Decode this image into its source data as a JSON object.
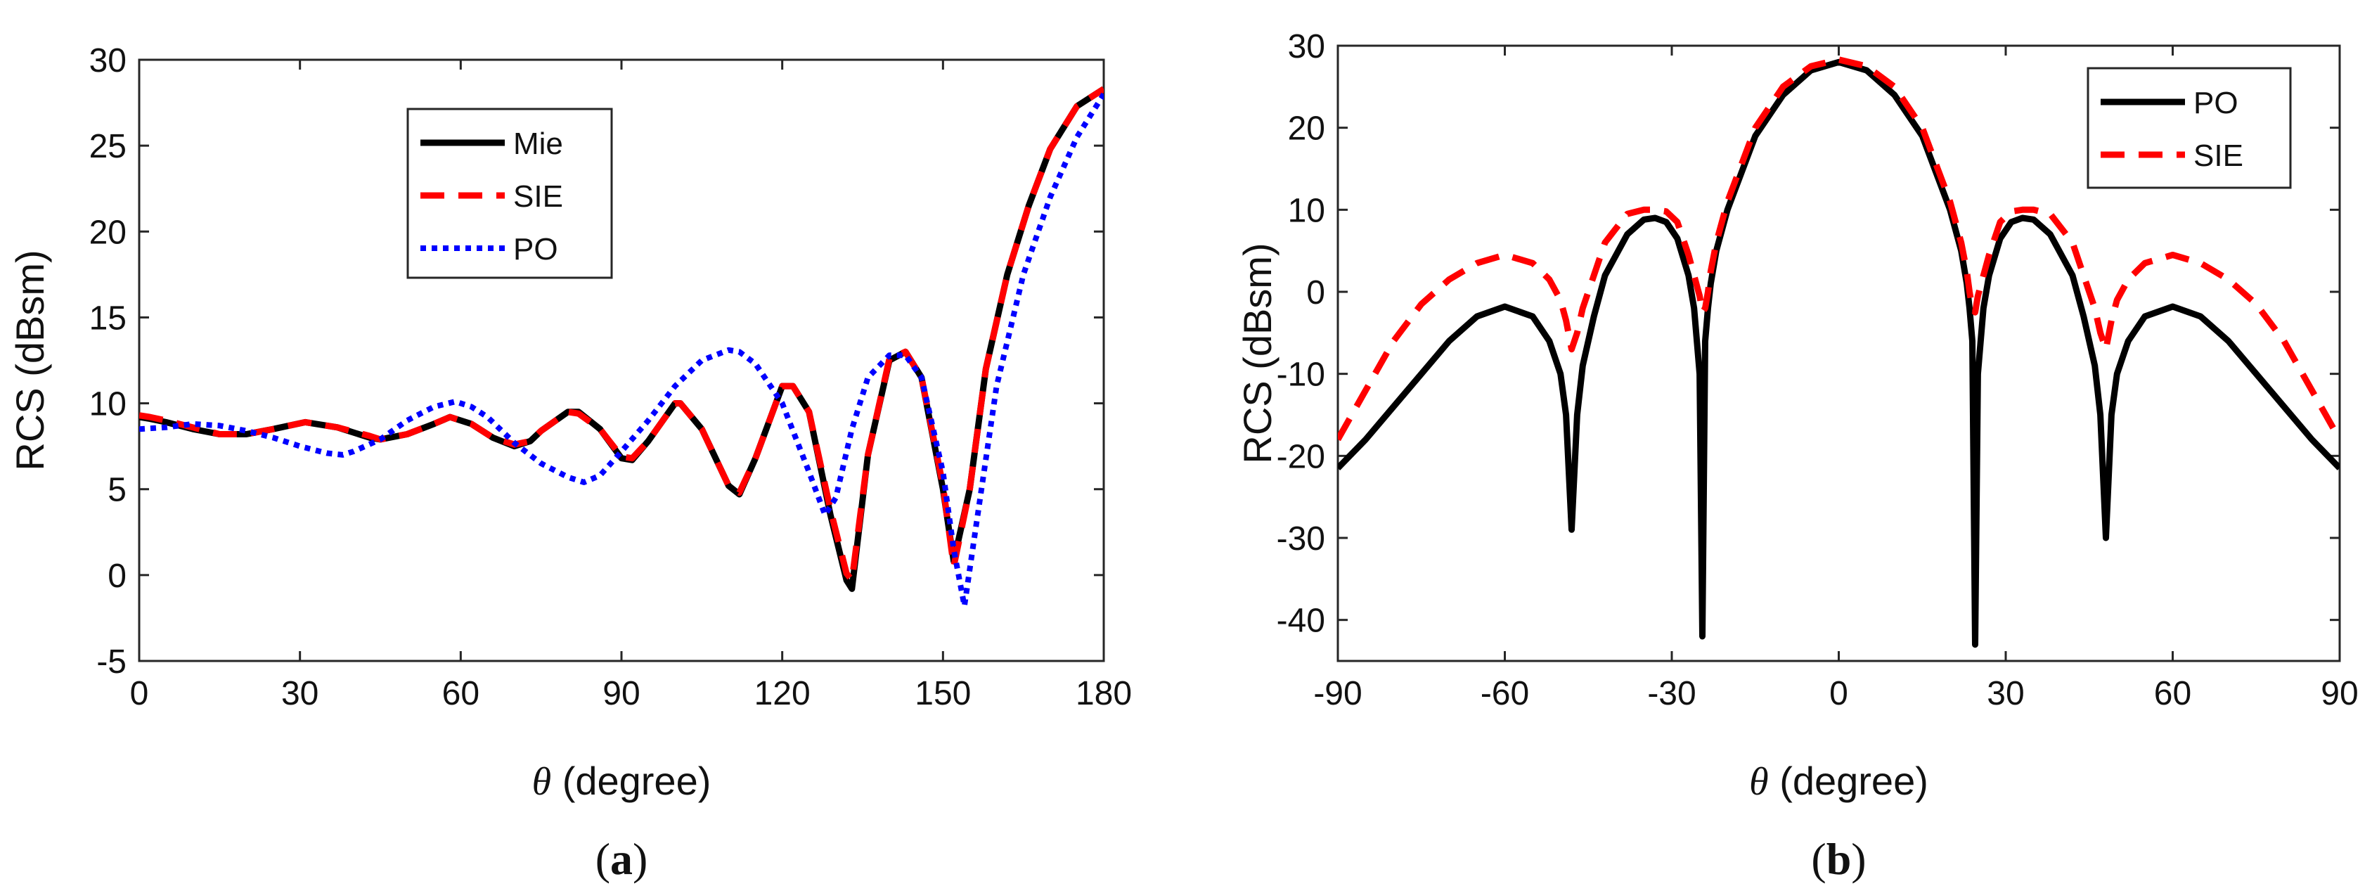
{
  "chart_data": [
    {
      "type": "line",
      "panel": "a",
      "caption": {
        "open": "(",
        "letter": "a",
        "close": ")"
      },
      "xlabel": {
        "symbol": "θ",
        "text": " (degree)"
      },
      "ylabel": "RCS (dBsm)",
      "xlim": [
        0,
        180
      ],
      "ylim": [
        -5,
        30
      ],
      "xticks": [
        0,
        30,
        60,
        90,
        120,
        150,
        180
      ],
      "yticks": [
        -5,
        0,
        5,
        10,
        15,
        20,
        25,
        30
      ],
      "xtick_labels": [
        "0",
        "30",
        "60",
        "90",
        "120",
        "150",
        "180"
      ],
      "ytick_labels": [
        "-5",
        "0",
        "5",
        "10",
        "15",
        "20",
        "25",
        "30"
      ],
      "grid": false,
      "legend_position": "upper-center",
      "series": [
        {
          "name": "Mie",
          "color": "#000000",
          "style": "solid",
          "x": [
            0,
            2,
            5,
            10,
            15,
            20,
            25,
            31,
            37,
            43,
            45,
            50,
            55,
            58,
            62,
            66,
            70,
            73,
            75,
            80,
            82,
            86,
            90,
            92,
            95,
            100,
            101,
            105,
            110,
            112,
            115,
            120,
            122,
            125,
            129,
            132,
            133,
            136,
            140,
            143,
            146,
            150,
            152,
            155,
            158,
            162,
            166,
            170,
            175,
            180
          ],
          "y": [
            9.2,
            9.1,
            8.9,
            8.5,
            8.2,
            8.2,
            8.5,
            8.9,
            8.6,
            8.0,
            7.9,
            8.2,
            8.8,
            9.2,
            8.8,
            8.0,
            7.5,
            7.8,
            8.4,
            9.5,
            9.5,
            8.5,
            6.8,
            6.7,
            7.8,
            10.0,
            10.0,
            8.5,
            5.2,
            4.7,
            6.8,
            11.0,
            11.0,
            9.5,
            3.5,
            -0.3,
            -0.8,
            7.0,
            12.5,
            13.0,
            11.5,
            5.0,
            0.8,
            5.0,
            12.0,
            17.5,
            21.5,
            24.8,
            27.3,
            28.3
          ]
        },
        {
          "name": "SIE",
          "color": "#ff0000",
          "style": "dashed",
          "x": [
            0,
            2,
            5,
            10,
            15,
            20,
            25,
            31,
            37,
            43,
            45,
            50,
            55,
            58,
            62,
            66,
            70,
            73,
            75,
            80,
            82,
            86,
            90,
            92,
            95,
            100,
            101,
            105,
            110,
            112,
            115,
            120,
            122,
            125,
            129,
            132,
            133,
            136,
            140,
            143,
            146,
            150,
            152,
            155,
            158,
            162,
            166,
            170,
            175,
            180
          ],
          "y": [
            9.3,
            9.2,
            9.0,
            8.6,
            8.2,
            8.2,
            8.5,
            8.9,
            8.6,
            8.1,
            7.9,
            8.2,
            8.8,
            9.2,
            8.8,
            8.0,
            7.6,
            7.8,
            8.4,
            9.5,
            9.4,
            8.5,
            6.9,
            6.8,
            7.8,
            10.0,
            10.0,
            8.5,
            5.2,
            4.8,
            6.8,
            11.0,
            11.0,
            9.5,
            3.8,
            0.1,
            -0.3,
            7.0,
            12.6,
            13.0,
            11.5,
            5.2,
            0.5,
            5.0,
            12.0,
            17.5,
            21.5,
            24.8,
            27.3,
            28.3
          ]
        },
        {
          "name": "PO",
          "color": "#0000ff",
          "style": "dotted",
          "x": [
            0,
            5,
            10,
            15,
            20,
            25,
            30,
            35,
            38,
            40,
            45,
            50,
            55,
            59,
            62,
            65,
            70,
            75,
            80,
            83,
            86,
            90,
            95,
            100,
            105,
            110,
            112,
            115,
            120,
            125,
            128,
            130,
            133,
            136,
            140,
            143,
            146,
            150,
            152,
            154,
            156,
            160,
            165,
            170,
            175,
            180
          ],
          "y": [
            8.5,
            8.6,
            8.8,
            8.7,
            8.4,
            8.0,
            7.5,
            7.1,
            7.0,
            7.2,
            7.9,
            9.0,
            9.8,
            10.1,
            9.8,
            9.2,
            7.7,
            6.5,
            5.7,
            5.4,
            5.8,
            7.2,
            9.0,
            11.0,
            12.5,
            13.1,
            13.0,
            12.3,
            10.0,
            6.0,
            3.5,
            4.5,
            8.5,
            11.5,
            12.8,
            12.8,
            11.5,
            6.0,
            1.5,
            -1.8,
            2.5,
            11.0,
            17.5,
            22.0,
            25.5,
            28.0
          ]
        }
      ]
    },
    {
      "type": "line",
      "panel": "b",
      "caption": {
        "open": "(",
        "letter": "b",
        "close": ")"
      },
      "xlabel": {
        "symbol": "θ",
        "text": " (degree)"
      },
      "ylabel": "RCS (dBsm)",
      "xlim": [
        -90,
        90
      ],
      "ylim": [
        -45,
        30
      ],
      "xticks": [
        -90,
        -60,
        -30,
        0,
        30,
        60,
        90
      ],
      "yticks": [
        -40,
        -30,
        -20,
        -10,
        0,
        10,
        20,
        30
      ],
      "xtick_labels": [
        "-90",
        "-60",
        "-30",
        "0",
        "30",
        "60",
        "90"
      ],
      "ytick_labels": [
        "-40",
        "-30",
        "-20",
        "-10",
        "0",
        "10",
        "20",
        "30"
      ],
      "grid": false,
      "legend_position": "top-right",
      "series": [
        {
          "name": "PO",
          "color": "#000000",
          "style": "solid",
          "x": [
            -90,
            -85,
            -80,
            -75,
            -70,
            -65,
            -60,
            -55,
            -52,
            -50,
            -49,
            -48,
            -47,
            -46,
            -44,
            -42,
            -38,
            -35,
            -33,
            -31,
            -29,
            -27,
            -26,
            -25,
            -24.5,
            -24,
            -23.5,
            -23,
            -22,
            -20,
            -15,
            -10,
            -5,
            0,
            5,
            10,
            15,
            20,
            22,
            23,
            23.5,
            24,
            24.5,
            25,
            26,
            27,
            29,
            31,
            33,
            35,
            38,
            42,
            44,
            46,
            47,
            48,
            49,
            50,
            52,
            55,
            60,
            65,
            70,
            75,
            80,
            85,
            90
          ],
          "y": [
            -21.5,
            -18,
            -14,
            -10,
            -6,
            -3,
            -1.8,
            -3,
            -6,
            -10,
            -15,
            -29,
            -15,
            -9,
            -3,
            2,
            7,
            8.8,
            9,
            8.5,
            6.5,
            2,
            -2,
            -10,
            -42,
            -6,
            -2,
            1,
            5,
            10,
            19,
            24,
            27,
            28,
            27,
            24,
            19,
            10,
            5,
            1,
            -2,
            -6,
            -43,
            -10,
            -2,
            2,
            6.5,
            8.5,
            9,
            8.8,
            7,
            2,
            -3,
            -9,
            -15,
            -30,
            -15,
            -10,
            -6,
            -3,
            -1.8,
            -3,
            -6,
            -10,
            -14,
            -18,
            -21.5
          ]
        },
        {
          "name": "SIE",
          "color": "#ff0000",
          "style": "dashed",
          "x": [
            -90,
            -85,
            -80,
            -75,
            -70,
            -65,
            -60,
            -55,
            -52,
            -50,
            -49,
            -48,
            -47,
            -46,
            -44,
            -42,
            -38,
            -35,
            -33,
            -31,
            -29,
            -27,
            -26,
            -25,
            -24.5,
            -24,
            -23.5,
            -23,
            -22,
            -20,
            -15,
            -10,
            -5,
            0,
            5,
            10,
            15,
            20,
            22,
            23,
            23.5,
            24,
            24.5,
            25,
            26,
            27,
            29,
            31,
            33,
            35,
            38,
            42,
            44,
            46,
            47,
            48,
            49,
            50,
            52,
            55,
            60,
            65,
            70,
            75,
            80,
            85,
            90
          ],
          "y": [
            -18,
            -12,
            -6,
            -1.5,
            1.5,
            3.5,
            4.5,
            3.5,
            1.5,
            -1,
            -3.5,
            -7,
            -5,
            -2,
            2,
            6,
            9.5,
            10,
            10,
            9.8,
            8.5,
            4.5,
            2,
            -0.5,
            -2.5,
            -2,
            0,
            2.5,
            6,
            11,
            20,
            25,
            27.5,
            28.3,
            27.5,
            25,
            20,
            11,
            6,
            2.5,
            0,
            -2,
            -2.5,
            -0.5,
            2,
            4.5,
            8.5,
            9.8,
            10,
            10,
            9.5,
            6,
            2,
            -2,
            -5,
            -7,
            -3.5,
            -1,
            1.5,
            3.5,
            4.5,
            3.5,
            1.5,
            -1.5,
            -6,
            -12,
            -18
          ]
        }
      ]
    }
  ]
}
